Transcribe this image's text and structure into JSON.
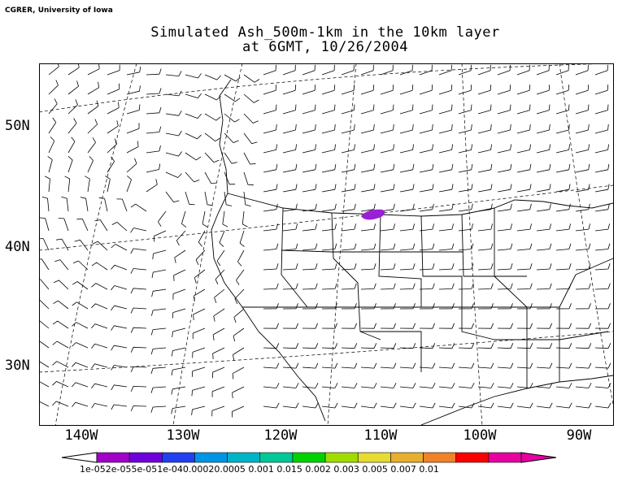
{
  "credit": "CGRER, University of Iowa",
  "title": {
    "line1": "Simulated Ash_500m-1km in the 10km layer",
    "line2": "at 6GMT, 10/26/2004"
  },
  "map": {
    "lat_labels": [
      "50N",
      "40N",
      "30N"
    ],
    "lon_labels": [
      "140W",
      "130W",
      "120W",
      "110W",
      "100W",
      "90W"
    ],
    "plume_color": "#9b1fd4",
    "wind_field": "wind barbs"
  },
  "colorbar": {
    "label_text": "1e-052e-055e-051e-040.00020.0005 0.001 0.015 0.002 0.003 0.005 0.007 0.01",
    "colors": [
      "#a000c8",
      "#6e00dc",
      "#2040f0",
      "#0094e6",
      "#00b4c8",
      "#00c896",
      "#00d200",
      "#a0dc00",
      "#e6dc32",
      "#e6af2d",
      "#f08228",
      "#fa0000",
      "#e600a0"
    ]
  }
}
